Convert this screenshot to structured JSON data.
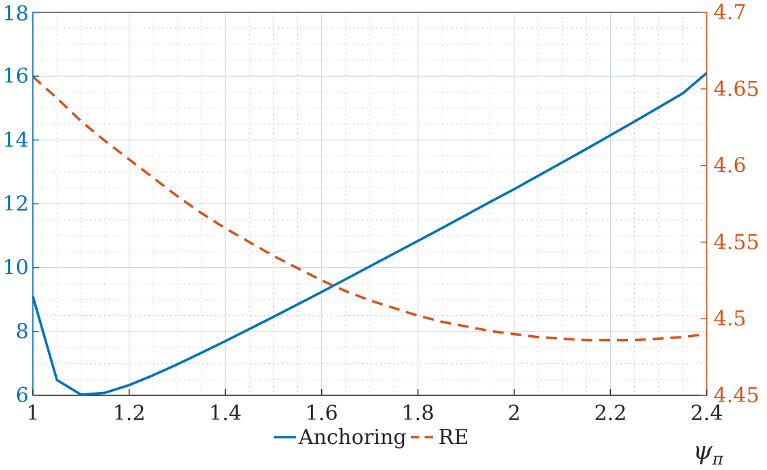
{
  "chart_data": {
    "type": "line",
    "title": "",
    "xlabel": "ψ",
    "xlabel_sub": "π",
    "xlim": [
      1,
      2.4
    ],
    "x_ticks": [
      "1",
      "1.2",
      "1.4",
      "1.6",
      "1.8",
      "2",
      "2.2",
      "2.4"
    ],
    "x_tick_values": [
      1,
      1.2,
      1.4,
      1.6,
      1.8,
      2,
      2.2,
      2.4
    ],
    "ylim_left": [
      6,
      18
    ],
    "y_ticks_left": [
      "6",
      "8",
      "10",
      "12",
      "14",
      "16",
      "18"
    ],
    "y_tick_values_left": [
      6,
      8,
      10,
      12,
      14,
      16,
      18
    ],
    "ylim_right": [
      4.45,
      4.7
    ],
    "y_ticks_right": [
      "4.45",
      "4.5",
      "4.55",
      "4.6",
      "4.65",
      "4.7"
    ],
    "y_tick_values_right": [
      4.45,
      4.5,
      4.55,
      4.6,
      4.65,
      4.7
    ],
    "grid": true,
    "minor_grid": true,
    "legend_position": "bottom-center",
    "colors": {
      "left_axis": "#0072BD",
      "right_axis": "#D95319",
      "grid": "#c8d6e0"
    },
    "series": [
      {
        "name": "Anchoring",
        "axis": "left",
        "style": "solid",
        "color": "#0072BD",
        "x": [
          1,
          1.05,
          1.1,
          1.15,
          1.2,
          1.25,
          1.3,
          1.35,
          1.4,
          1.45,
          1.5,
          1.55,
          1.6,
          1.65,
          1.7,
          1.75,
          1.8,
          1.85,
          1.9,
          1.95,
          2,
          2.05,
          2.1,
          2.15,
          2.2,
          2.25,
          2.3,
          2.35,
          2.4
        ],
        "y": [
          9.1,
          6.48,
          6.02,
          6.08,
          6.32,
          6.63,
          6.97,
          7.33,
          7.7,
          8.08,
          8.46,
          8.85,
          9.24,
          9.64,
          10.04,
          10.44,
          10.84,
          11.24,
          11.65,
          12.06,
          12.46,
          12.88,
          13.3,
          13.72,
          14.15,
          14.58,
          15.02,
          15.46,
          16.1
        ]
      },
      {
        "name": "RE",
        "axis": "right",
        "style": "dashed",
        "color": "#D95319",
        "x": [
          1,
          1.05,
          1.1,
          1.15,
          1.2,
          1.25,
          1.3,
          1.35,
          1.4,
          1.45,
          1.5,
          1.55,
          1.6,
          1.65,
          1.7,
          1.75,
          1.8,
          1.85,
          1.9,
          1.95,
          2,
          2.05,
          2.1,
          2.15,
          2.2,
          2.25,
          2.3,
          2.35,
          2.4
        ],
        "y": [
          4.658,
          4.644,
          4.629,
          4.616,
          4.604,
          4.592,
          4.58,
          4.569,
          4.559,
          4.55,
          4.541,
          4.533,
          4.525,
          4.518,
          4.512,
          4.507,
          4.502,
          4.498,
          4.495,
          4.492,
          4.49,
          4.488,
          4.487,
          4.486,
          4.486,
          4.486,
          4.487,
          4.488,
          4.49
        ]
      }
    ]
  }
}
